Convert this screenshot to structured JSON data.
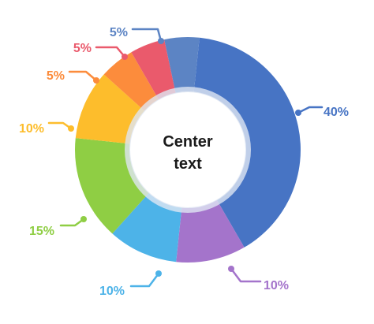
{
  "chart_data": {
    "type": "pie",
    "variant": "donut",
    "center_text": [
      "Center",
      "text"
    ],
    "slices": [
      {
        "value": 40,
        "label": "40%",
        "color": "#4774C4"
      },
      {
        "value": 10,
        "label": "10%",
        "color": "#A474CB"
      },
      {
        "value": 10,
        "label": "10%",
        "color": "#4DB3E8"
      },
      {
        "value": 15,
        "label": "15%",
        "color": "#8FCE44"
      },
      {
        "value": 10,
        "label": "10%",
        "color": "#FDBD2C"
      },
      {
        "value": 5,
        "label": "5%",
        "color": "#FC8C3C"
      },
      {
        "value": 5,
        "label": "5%",
        "color": "#EA5A6C"
      },
      {
        "value": 5,
        "label": "5%",
        "color": "#5C84C4"
      }
    ]
  }
}
